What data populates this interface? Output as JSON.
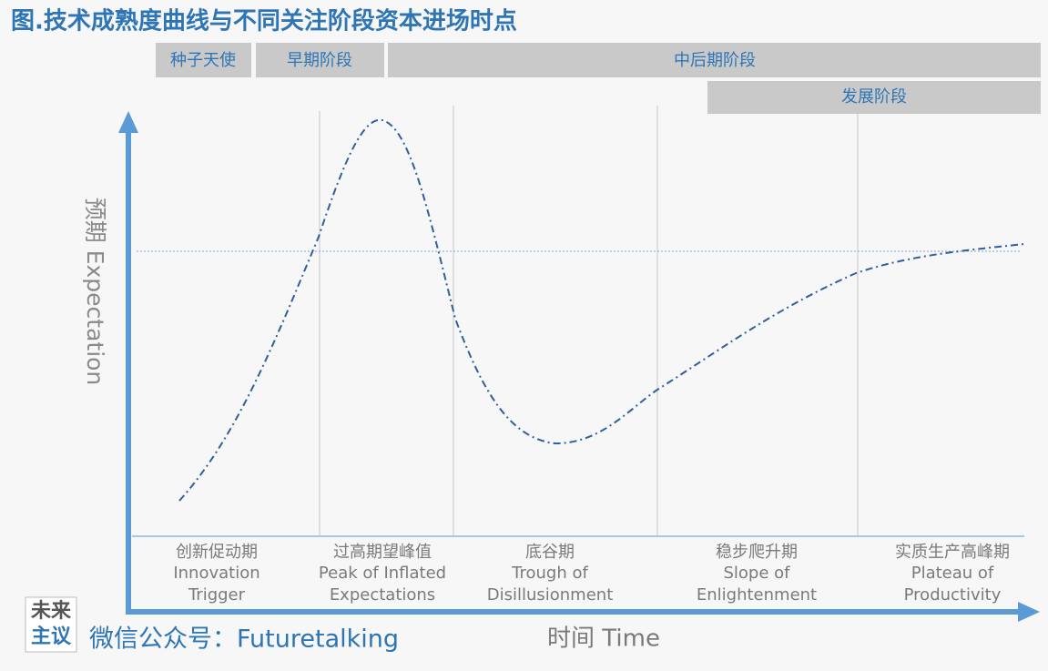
{
  "title": "图.技术成熟度曲线与不同关注阶段资本进场时点",
  "stages": [
    "种子天使",
    "早期阶段",
    "中后期阶段",
    "发展阶段"
  ],
  "y_axis_label": "预期 Expectation",
  "x_axis_label": "时间 Time",
  "phases": [
    [
      "创新促动期",
      "Innovation",
      "Trigger"
    ],
    [
      "过高期望峰值",
      "Peak of Inflated",
      "Expectations"
    ],
    [
      "底谷期",
      "Trough of",
      "Disillusionment"
    ],
    [
      "稳步爬升期",
      "Slope of",
      "Enlightenment"
    ],
    [
      "实质生产高峰期",
      "Plateau of",
      "Productivity"
    ]
  ],
  "logo": [
    "未来",
    "主议"
  ],
  "footer": "微信公众号：Futuretalking"
}
